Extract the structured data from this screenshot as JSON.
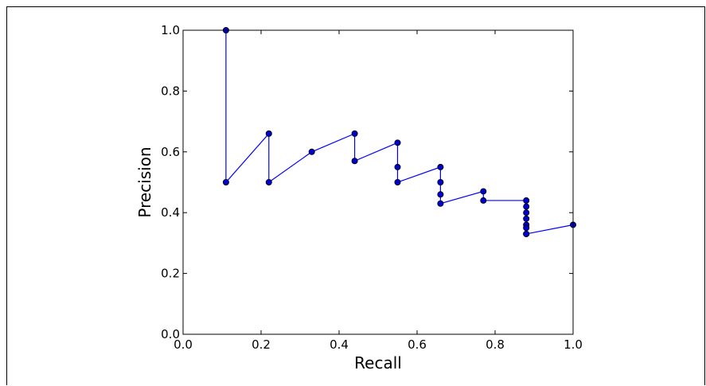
{
  "chart_data": {
    "type": "line",
    "title": "",
    "xlabel": "Recall",
    "ylabel": "Precision",
    "xlim": [
      0.0,
      1.0
    ],
    "ylim": [
      0.0,
      1.0
    ],
    "xticks": [
      "0.0",
      "0.2",
      "0.4",
      "0.6",
      "0.8",
      "1.0"
    ],
    "yticks": [
      "0.0",
      "0.2",
      "0.4",
      "0.6",
      "0.8",
      "1.0"
    ],
    "grid": false,
    "line_color": "#0000ff",
    "marker_color": "#0000cc",
    "series": [
      {
        "x": [
          0.11,
          0.11,
          0.22,
          0.22,
          0.33,
          0.44,
          0.44,
          0.55,
          0.55,
          0.55,
          0.66,
          0.66,
          0.66,
          0.66,
          0.77,
          0.77,
          0.88,
          0.88,
          0.88,
          0.88,
          0.88,
          0.88,
          0.88,
          0.88,
          1.0
        ],
        "y": [
          1.0,
          0.5,
          0.66,
          0.5,
          0.6,
          0.66,
          0.57,
          0.63,
          0.55,
          0.5,
          0.55,
          0.5,
          0.46,
          0.43,
          0.47,
          0.44,
          0.44,
          0.42,
          0.4,
          0.38,
          0.36,
          0.35,
          0.33,
          0.33,
          0.36
        ]
      }
    ]
  }
}
